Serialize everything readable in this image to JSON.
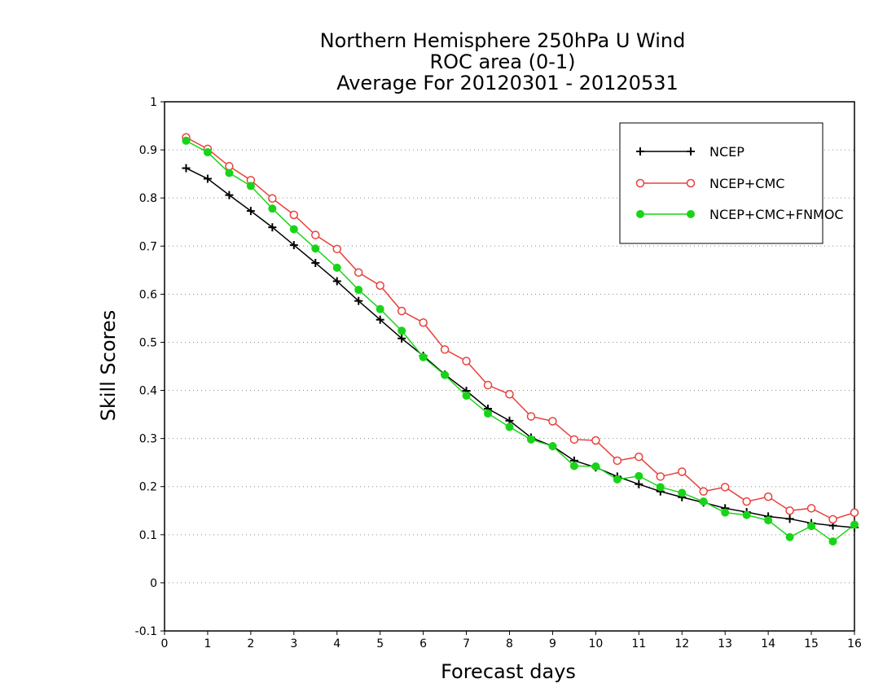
{
  "chart_data": {
    "type": "line",
    "title": [
      "Northern Hemisphere 250hPa U Wind",
      "ROC area (0-1)",
      "Average For 20120301 - 20120531"
    ],
    "xlabel": "Forecast days",
    "ylabel": "Skill Scores",
    "xlim": [
      0,
      16
    ],
    "ylim": [
      -0.1,
      1
    ],
    "xticks": [
      "0",
      "1",
      "2",
      "3",
      "4",
      "5",
      "6",
      "7",
      "8",
      "9",
      "10",
      "11",
      "12",
      "13",
      "14",
      "15",
      "16"
    ],
    "yticks": [
      "-0.1",
      "0",
      "0.1",
      "0.2",
      "0.3",
      "0.4",
      "0.5",
      "0.6",
      "0.7",
      "0.8",
      "0.9",
      "1"
    ],
    "grid": true,
    "legend_position": "top-right",
    "x": [
      0.5,
      1,
      1.5,
      2,
      2.5,
      3,
      3.5,
      4,
      4.5,
      5,
      5.5,
      6,
      6.5,
      7,
      7.5,
      8,
      8.5,
      9,
      9.5,
      10,
      10.5,
      11,
      11.5,
      12,
      12.5,
      13,
      13.5,
      14,
      14.5,
      15,
      15.5,
      16
    ],
    "series": [
      {
        "name": "NCEP",
        "color": "#000000",
        "marker": "plus",
        "values": [
          0.862,
          0.84,
          0.806,
          0.773,
          0.739,
          0.702,
          0.665,
          0.627,
          0.586,
          0.547,
          0.508,
          0.472,
          0.433,
          0.399,
          0.362,
          0.337,
          0.302,
          0.284,
          0.254,
          0.24,
          0.221,
          0.205,
          0.19,
          0.178,
          0.167,
          0.155,
          0.147,
          0.138,
          0.133,
          0.124,
          0.119,
          0.115
        ]
      },
      {
        "name": "NCEP+CMC",
        "color": "#e8403a",
        "marker": "open-circle",
        "values": [
          0.926,
          0.902,
          0.866,
          0.837,
          0.799,
          0.765,
          0.723,
          0.694,
          0.645,
          0.618,
          0.565,
          0.541,
          0.485,
          0.461,
          0.411,
          0.392,
          0.346,
          0.336,
          0.298,
          0.296,
          0.254,
          0.262,
          0.221,
          0.231,
          0.19,
          0.199,
          0.169,
          0.179,
          0.15,
          0.155,
          0.132,
          0.146
        ]
      },
      {
        "name": "NCEP+CMC+FNMOC",
        "color": "#18d418",
        "marker": "filled-circle",
        "values": [
          0.919,
          0.895,
          0.852,
          0.825,
          0.778,
          0.735,
          0.695,
          0.655,
          0.609,
          0.569,
          0.524,
          0.469,
          0.432,
          0.389,
          0.352,
          0.324,
          0.298,
          0.284,
          0.243,
          0.242,
          0.215,
          0.222,
          0.199,
          0.187,
          0.169,
          0.146,
          0.141,
          0.13,
          0.095,
          0.118,
          0.086,
          0.121
        ]
      }
    ]
  }
}
